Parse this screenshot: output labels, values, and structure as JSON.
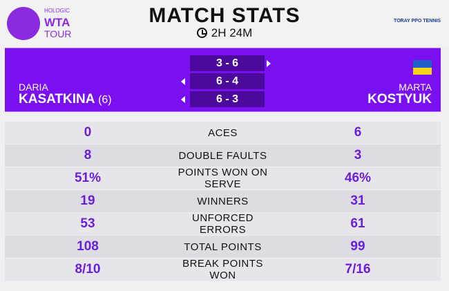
{
  "brand": {
    "logo_line1": "HOLOGIC",
    "logo_line2": "WTA",
    "logo_line3": "TOUR",
    "sponsor": "TORAY PPO TENNIS"
  },
  "header": {
    "title": "MATCH STATS",
    "duration": "2H 24M"
  },
  "players": {
    "left": {
      "first": "DARIA",
      "last": "KASATKINA",
      "seed": "(6)"
    },
    "right": {
      "first": "MARTA",
      "last": "KOSTYUK",
      "flag_colors": [
        "#1f5fc8",
        "#f6d31a"
      ]
    }
  },
  "sets": [
    {
      "score": "3 - 6",
      "winner": "right"
    },
    {
      "score": "6 - 4",
      "winner": "left"
    },
    {
      "score": "6 - 3",
      "winner": "left"
    }
  ],
  "stats": [
    {
      "label": "ACES",
      "left": "0",
      "right": "6"
    },
    {
      "label": "DOUBLE FAULTS",
      "left": "8",
      "right": "3"
    },
    {
      "label": "POINTS WON ON SERVE",
      "left": "51%",
      "right": "46%"
    },
    {
      "label": "WINNERS",
      "left": "19",
      "right": "31"
    },
    {
      "label": "UNFORCED ERRORS",
      "left": "53",
      "right": "61"
    },
    {
      "label": "TOTAL POINTS",
      "left": "108",
      "right": "99"
    },
    {
      "label": "BREAK POINTS WON",
      "left": "8/10",
      "right": "7/16"
    }
  ]
}
